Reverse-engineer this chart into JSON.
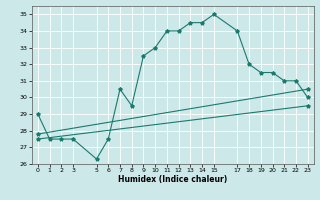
{
  "xlabel": "Humidex (Indice chaleur)",
  "ylabel": "",
  "xlim": [
    -0.5,
    23.5
  ],
  "ylim": [
    26,
    35.5
  ],
  "yticks": [
    26,
    27,
    28,
    29,
    30,
    31,
    32,
    33,
    34,
    35
  ],
  "xticks": [
    0,
    1,
    2,
    3,
    5,
    6,
    7,
    8,
    9,
    10,
    11,
    12,
    13,
    14,
    15,
    17,
    18,
    19,
    20,
    21,
    22,
    23
  ],
  "bg_color": "#cce8e8",
  "line_color": "#1a7a6e",
  "line1_x": [
    0,
    1,
    2,
    3,
    5,
    6,
    7,
    8,
    9,
    10,
    11,
    12,
    13,
    14,
    15,
    17,
    18,
    19,
    20,
    21,
    22,
    23
  ],
  "line1_y": [
    29.0,
    27.5,
    27.5,
    27.5,
    26.3,
    27.5,
    30.5,
    29.5,
    32.5,
    33.0,
    34.0,
    34.0,
    34.5,
    34.5,
    35.0,
    34.0,
    32.0,
    31.5,
    31.5,
    31.0,
    31.0,
    30.0
  ],
  "line2_x": [
    0,
    23
  ],
  "line2_y": [
    27.5,
    29.5
  ],
  "line3_x": [
    0,
    23
  ],
  "line3_y": [
    27.8,
    30.5
  ]
}
